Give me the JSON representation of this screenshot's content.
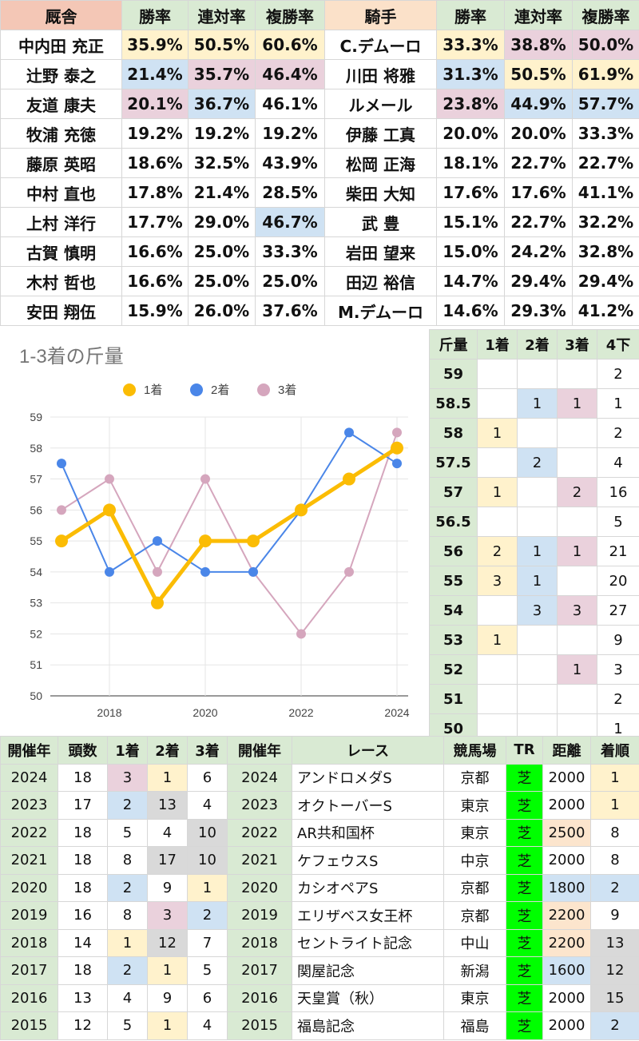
{
  "top": {
    "headers": [
      "厩舎",
      "勝率",
      "連対率",
      "複勝率",
      "騎手",
      "勝率",
      "連対率",
      "複勝率"
    ],
    "rows": [
      {
        "t": "中内田 充正",
        "t1": "35.9%",
        "t2": "50.5%",
        "t3": "60.6%",
        "j": "C.デムーロ",
        "j1": "33.3%",
        "j2": "38.8%",
        "j3": "50.0%"
      },
      {
        "t": "辻野 泰之",
        "t1": "21.4%",
        "t2": "35.7%",
        "t3": "46.4%",
        "j": "川田 将雅",
        "j1": "31.3%",
        "j2": "50.5%",
        "j3": "61.9%"
      },
      {
        "t": "友道 康夫",
        "t1": "20.1%",
        "t2": "36.7%",
        "t3": "46.1%",
        "j": "ルメール",
        "j1": "23.8%",
        "j2": "44.9%",
        "j3": "57.7%"
      },
      {
        "t": "牧浦 充徳",
        "t1": "19.2%",
        "t2": "19.2%",
        "t3": "19.2%",
        "j": "伊藤 工真",
        "j1": "20.0%",
        "j2": "20.0%",
        "j3": "33.3%"
      },
      {
        "t": "藤原 英昭",
        "t1": "18.6%",
        "t2": "32.5%",
        "t3": "43.9%",
        "j": "松岡 正海",
        "j1": "18.1%",
        "j2": "22.7%",
        "j3": "22.7%"
      },
      {
        "t": "中村 直也",
        "t1": "17.8%",
        "t2": "21.4%",
        "t3": "28.5%",
        "j": "柴田 大知",
        "j1": "17.6%",
        "j2": "17.6%",
        "j3": "41.1%"
      },
      {
        "t": "上村 洋行",
        "t1": "17.7%",
        "t2": "29.0%",
        "t3": "46.7%",
        "j": "武 豊",
        "j1": "15.1%",
        "j2": "22.7%",
        "j3": "32.2%"
      },
      {
        "t": "古賀 慎明",
        "t1": "16.6%",
        "t2": "25.0%",
        "t3": "33.3%",
        "j": "岩田 望来",
        "j1": "15.0%",
        "j2": "24.2%",
        "j3": "32.8%"
      },
      {
        "t": "木村 哲也",
        "t1": "16.6%",
        "t2": "25.0%",
        "t3": "25.0%",
        "j": "田辺 裕信",
        "j1": "14.7%",
        "j2": "29.4%",
        "j3": "29.4%"
      },
      {
        "t": "安田 翔伍",
        "t1": "15.9%",
        "t2": "26.0%",
        "t3": "37.6%",
        "j": "M.デムーロ",
        "j1": "14.6%",
        "j2": "29.3%",
        "j3": "41.2%"
      }
    ]
  },
  "chart_data": {
    "type": "line",
    "title": "1-3着の斤量",
    "x": [
      2017,
      2018,
      2019,
      2020,
      2021,
      2022,
      2023,
      2024
    ],
    "x_ticks": [
      "2018",
      "2020",
      "2022",
      "2024"
    ],
    "ylim": [
      50,
      59
    ],
    "y_ticks": [
      "50",
      "51",
      "52",
      "53",
      "54",
      "55",
      "56",
      "57",
      "58",
      "59"
    ],
    "series": [
      {
        "name": "1着",
        "color": "#fbbc04",
        "values": [
          55,
          56,
          53,
          55,
          55,
          56,
          57,
          58
        ]
      },
      {
        "name": "2着",
        "color": "#4a86e8",
        "values": [
          57.5,
          54,
          55,
          54,
          54,
          56,
          58.5,
          57.5
        ]
      },
      {
        "name": "3着",
        "color": "#d5a6bd",
        "values": [
          56,
          57,
          54,
          57,
          54,
          52,
          54,
          58.5
        ]
      }
    ],
    "legend": "top-center",
    "grid": true
  },
  "weight": {
    "headers": [
      "斤量",
      "1着",
      "2着",
      "3着",
      "4下"
    ],
    "rows": [
      {
        "w": "59",
        "a": "",
        "b": "",
        "c": "",
        "d": "2"
      },
      {
        "w": "58.5",
        "a": "",
        "b": "1",
        "c": "1",
        "d": "1"
      },
      {
        "w": "58",
        "a": "1",
        "b": "",
        "c": "",
        "d": "2"
      },
      {
        "w": "57.5",
        "a": "",
        "b": "2",
        "c": "",
        "d": "4"
      },
      {
        "w": "57",
        "a": "1",
        "b": "",
        "c": "2",
        "d": "16"
      },
      {
        "w": "56.5",
        "a": "",
        "b": "",
        "c": "",
        "d": "5"
      },
      {
        "w": "56",
        "a": "2",
        "b": "1",
        "c": "1",
        "d": "21"
      },
      {
        "w": "55",
        "a": "3",
        "b": "1",
        "c": "",
        "d": "20"
      },
      {
        "w": "54",
        "a": "",
        "b": "3",
        "c": "3",
        "d": "27"
      },
      {
        "w": "53",
        "a": "1",
        "b": "",
        "c": "",
        "d": "9"
      },
      {
        "w": "52",
        "a": "",
        "b": "",
        "c": "1",
        "d": "3"
      },
      {
        "w": "51",
        "a": "",
        "b": "",
        "c": "",
        "d": "2"
      },
      {
        "w": "50",
        "a": "",
        "b": "",
        "c": "",
        "d": "1"
      }
    ]
  },
  "history": {
    "left_headers": [
      "開催年",
      "頭数",
      "1着",
      "2着",
      "3着"
    ],
    "left_rows": [
      {
        "y": "2024",
        "n": "18",
        "a": "3",
        "b": "1",
        "c": "6"
      },
      {
        "y": "2023",
        "n": "17",
        "a": "2",
        "b": "13",
        "c": "4"
      },
      {
        "y": "2022",
        "n": "18",
        "a": "5",
        "b": "4",
        "c": "10"
      },
      {
        "y": "2021",
        "n": "18",
        "a": "8",
        "b": "17",
        "c": "10"
      },
      {
        "y": "2020",
        "n": "18",
        "a": "2",
        "b": "9",
        "c": "1"
      },
      {
        "y": "2019",
        "n": "16",
        "a": "8",
        "b": "3",
        "c": "2"
      },
      {
        "y": "2018",
        "n": "14",
        "a": "1",
        "b": "12",
        "c": "7"
      },
      {
        "y": "2017",
        "n": "18",
        "a": "2",
        "b": "1",
        "c": "5"
      },
      {
        "y": "2016",
        "n": "13",
        "a": "4",
        "b": "9",
        "c": "6"
      },
      {
        "y": "2015",
        "n": "12",
        "a": "5",
        "b": "1",
        "c": "4"
      }
    ],
    "right_headers": [
      "開催年",
      "レース",
      "競馬場",
      "TR",
      "距離",
      "着順"
    ],
    "right_rows": [
      {
        "y": "2024",
        "r": "アンドロメダS",
        "v": "京都",
        "tr": "芝",
        "d": "2000",
        "p": "1"
      },
      {
        "y": "2023",
        "r": "オクトーバーS",
        "v": "東京",
        "tr": "芝",
        "d": "2000",
        "p": "1"
      },
      {
        "y": "2022",
        "r": "AR共和国杯",
        "v": "東京",
        "tr": "芝",
        "d": "2500",
        "p": "8"
      },
      {
        "y": "2021",
        "r": "ケフェウスS",
        "v": "中京",
        "tr": "芝",
        "d": "2000",
        "p": "8"
      },
      {
        "y": "2020",
        "r": "カシオペアS",
        "v": "京都",
        "tr": "芝",
        "d": "1800",
        "p": "2"
      },
      {
        "y": "2019",
        "r": "エリザベス女王杯",
        "v": "京都",
        "tr": "芝",
        "d": "2200",
        "p": "9"
      },
      {
        "y": "2018",
        "r": "セントライト記念",
        "v": "中山",
        "tr": "芝",
        "d": "2200",
        "p": "13"
      },
      {
        "y": "2017",
        "r": "関屋記念",
        "v": "新潟",
        "tr": "芝",
        "d": "1600",
        "p": "12"
      },
      {
        "y": "2016",
        "r": "天皇賞（秋）",
        "v": "東京",
        "tr": "芝",
        "d": "2000",
        "p": "15"
      },
      {
        "y": "2015",
        "r": "福島記念",
        "v": "福島",
        "tr": "芝",
        "d": "2000",
        "p": "2"
      }
    ]
  },
  "colors": {
    "yellow": "#fff2cc",
    "blue": "#cfe2f3",
    "pink": "#ead1dc",
    "gray": "#d9d9d9",
    "orange": "#fce5cd",
    "green": "#d9ead3",
    "bright_green": "#00ff00",
    "salmon": "#f4c7b6"
  }
}
